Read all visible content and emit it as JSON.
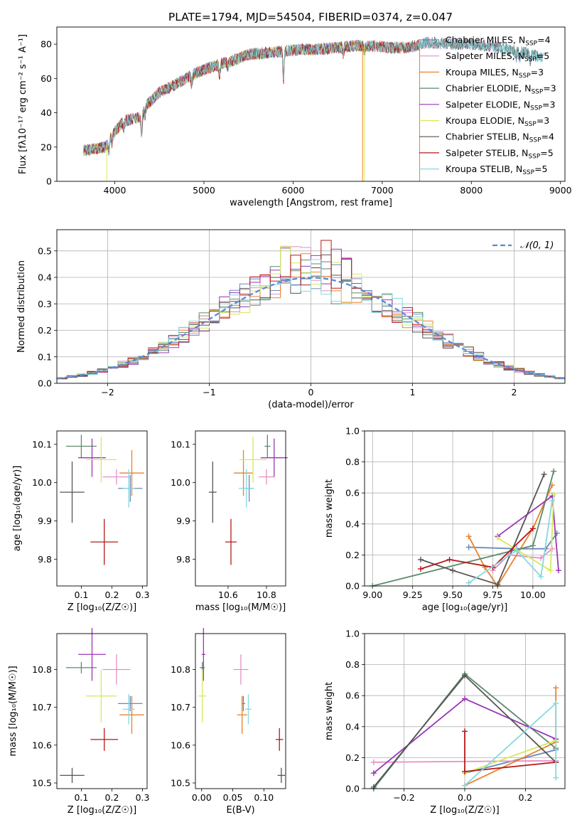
{
  "figure": {
    "title": "PLATE=1794, MJD=54504, FIBERID=0374, z=0.047"
  },
  "models": [
    {
      "name": "Chabrier MILES",
      "nssp": "4",
      "color": "#6b86b8",
      "z": 0.26,
      "z_err": 0.04,
      "age": 9.985,
      "age_err": 0.035,
      "mass": 10.71,
      "mass_err": 0.02,
      "ebv": 0.067,
      "ebv_err": 0.003
    },
    {
      "name": "Salpeter MILES",
      "nssp": "5",
      "color": "#e88ec4",
      "z": 0.215,
      "z_err": 0.045,
      "age": 10.015,
      "age_err": 0.02,
      "mass": 10.8,
      "mass_err": 0.04,
      "ebv": 0.063,
      "ebv_err": 0.012
    },
    {
      "name": "Kroupa MILES",
      "nssp": "3",
      "color": "#e8822d",
      "z": 0.265,
      "z_err": 0.04,
      "age": 10.025,
      "age_err": 0.06,
      "mass": 10.68,
      "mass_err": 0.05,
      "ebv": 0.065,
      "ebv_err": 0.008
    },
    {
      "name": "Chabrier ELODIE",
      "nssp": "3",
      "color": "#5b8b6a",
      "z": 0.1,
      "z_err": 0.05,
      "age": 10.095,
      "age_err": 0.03,
      "mass": 10.805,
      "mass_err": 0.015,
      "ebv": 0.001,
      "ebv_err": 0.004
    },
    {
      "name": "Salpeter ELODIE",
      "nssp": "3",
      "color": "#9b36b5",
      "z": 0.135,
      "z_err": 0.045,
      "age": 10.065,
      "age_err": 0.05,
      "mass": 10.84,
      "mass_err": 0.07,
      "ebv": 0.003,
      "ebv_err": 0.003
    },
    {
      "name": "Kroupa ELODIE",
      "nssp": "3",
      "color": "#d4ea5a",
      "z": 0.165,
      "z_err": 0.05,
      "age": 10.06,
      "age_err": 0.06,
      "mass": 10.73,
      "mass_err": 0.07,
      "ebv": 0.001,
      "ebv_err": 0.006
    },
    {
      "name": "Chabrier STELIB",
      "nssp": "4",
      "color": "#555555",
      "z": 0.07,
      "z_err": 0.04,
      "age": 9.975,
      "age_err": 0.08,
      "mass": 10.52,
      "mass_err": 0.02,
      "ebv": 0.128,
      "ebv_err": 0.006
    },
    {
      "name": "Salpeter STELIB",
      "nssp": "5",
      "color": "#b41a1a",
      "z": 0.175,
      "z_err": 0.045,
      "age": 9.845,
      "age_err": 0.06,
      "mass": 10.615,
      "mass_err": 0.03,
      "ebv": 0.125,
      "ebv_err": 0.006
    },
    {
      "name": "Kroupa STELIB",
      "nssp": "5",
      "color": "#86d8e0",
      "z": 0.255,
      "z_err": 0.02,
      "age": 9.985,
      "age_err": 0.05,
      "mass": 10.695,
      "mass_err": 0.04,
      "ebv": 0.075,
      "ebv_err": 0.005
    }
  ],
  "chart_data": [
    {
      "id": "spectrum",
      "type": "line",
      "xlabel": "wavelength [Angstrom, rest frame]",
      "ylabel": "Flux [fλ10⁻¹⁷ erg cm⁻² s⁻¹ A⁻¹]",
      "xlim": [
        3350,
        9050
      ],
      "ylim": [
        0,
        90
      ],
      "xticks": [
        4000,
        5000,
        6000,
        7000,
        8000,
        9000
      ],
      "yticks": [
        0,
        20,
        40,
        60,
        80
      ],
      "legend": "upper right",
      "continuum": {
        "x": [
          3650,
          3900,
          3950,
          4100,
          4300,
          4350,
          4500,
          4700,
          4900,
          5100,
          5300,
          5500,
          5700,
          5900,
          6100,
          6300,
          6500,
          6700,
          6900,
          7100,
          7300,
          7500,
          7800,
          8000,
          8200,
          8400,
          8600,
          8800
        ],
        "y": [
          18,
          20,
          26,
          35,
          38,
          44,
          52,
          57,
          63,
          67,
          70,
          74,
          75,
          76,
          77,
          77,
          78,
          79,
          79,
          78,
          78,
          81,
          80,
          80,
          79,
          77,
          75,
          72
        ]
      },
      "drops": [
        {
          "series": "Kroupa ELODIE",
          "x": 3910
        },
        {
          "series": "Kroupa ELODIE",
          "x": 6800
        },
        {
          "series": "Kroupa MILES",
          "x": 6780
        },
        {
          "series": "Kroupa MILES",
          "x": 7420
        }
      ],
      "wave_start": {
        "Chabrier MILES": 3650,
        "Kroupa ELODIE": 3650
      },
      "wave_end": {
        "Chabrier MILES": 8820,
        "Salpeter MILES": 8300,
        "Kroupa MILES": 7420,
        "Chabrier ELODIE": 8800,
        "Salpeter ELODIE": 6800,
        "Kroupa ELODIE": 6800,
        "Chabrier STELIB": 8800,
        "Salpeter STELIB": 7420,
        "Kroupa STELIB": 8800
      }
    },
    {
      "id": "residuals",
      "type": "histogram",
      "xlabel": "(data-model)/error",
      "ylabel": "Normed distribution",
      "xlim": [
        -2.5,
        2.5
      ],
      "ylim": [
        0,
        0.58
      ],
      "xticks": [
        -2,
        -1,
        0,
        1,
        2
      ],
      "yticks": [
        0.0,
        0.1,
        0.2,
        0.3,
        0.4,
        0.5
      ],
      "grid": true,
      "legend": "upper right",
      "reference": {
        "name": "𝒩(0, 1)",
        "mean": 0,
        "sigma": 1,
        "color": "#5a8ad2"
      }
    },
    {
      "id": "age-vs-z",
      "type": "scatter",
      "xlabel": "Z [log₁₀(Z/Z☉)]",
      "ylabel": "age  [log₁₀(age/yr)]",
      "xlim": [
        0.02,
        0.315
      ],
      "ylim": [
        9.73,
        10.135
      ],
      "xticks": [
        0.1,
        0.2,
        0.3
      ],
      "yticks": [
        9.8,
        9.9,
        10.0,
        10.1
      ],
      "xfield": "z",
      "yfield": "age"
    },
    {
      "id": "age-vs-mass",
      "type": "scatter",
      "xlabel": "mass [log₁₀(M/M☉)]",
      "ylabel": "",
      "xlim": [
        10.43,
        10.9
      ],
      "ylim": [
        9.73,
        10.135
      ],
      "xticks": [
        10.6,
        10.8
      ],
      "yticks": [
        9.8,
        9.9,
        10.0,
        10.1
      ],
      "xfield": "mass",
      "yfield": "age"
    },
    {
      "id": "weight-vs-age",
      "type": "line",
      "xlabel": "age  [log₁₀(age/yr)]",
      "ylabel": "mass weight",
      "xlim": [
        8.95,
        10.2
      ],
      "ylim": [
        0,
        1.0
      ],
      "xticks": [
        9.0,
        9.25,
        9.5,
        9.75,
        10.0
      ],
      "yticks": [
        0.0,
        0.2,
        0.4,
        0.6,
        0.8,
        1.0
      ],
      "grid": true,
      "series": [
        {
          "name": "Chabrier MILES",
          "x": [
            9.6,
            9.9,
            10.08,
            10.15
          ],
          "y": [
            0.25,
            0.24,
            0.24,
            0.34
          ]
        },
        {
          "name": "Salpeter MILES",
          "x": [
            9.75,
            9.85,
            10.05,
            10.12
          ],
          "y": [
            0.1,
            0.2,
            0.18,
            0.24
          ]
        },
        {
          "name": "Kroupa MILES",
          "x": [
            9.6,
            9.7,
            9.78,
            10.0,
            10.12
          ],
          "y": [
            0.32,
            0.12,
            0.0,
            0.37,
            0.65
          ]
        },
        {
          "name": "Chabrier ELODIE",
          "x": [
            9.0,
            10.0,
            10.13
          ],
          "y": [
            0.0,
            0.26,
            0.74
          ]
        },
        {
          "name": "Salpeter ELODIE",
          "x": [
            9.78,
            10.12,
            10.16
          ],
          "y": [
            0.32,
            0.58,
            0.1
          ]
        },
        {
          "name": "Kroupa ELODIE",
          "x": [
            9.78,
            10.11,
            10.13
          ],
          "y": [
            0.31,
            0.1,
            0.59
          ]
        },
        {
          "name": "Chabrier STELIB",
          "x": [
            9.3,
            9.5,
            9.78,
            10.07
          ],
          "y": [
            0.17,
            0.1,
            0.01,
            0.72
          ]
        },
        {
          "name": "Salpeter STELIB",
          "x": [
            9.3,
            9.48,
            9.75,
            10.0
          ],
          "y": [
            0.11,
            0.17,
            0.12,
            0.37
          ]
        },
        {
          "name": "Kroupa STELIB",
          "x": [
            9.6,
            9.9,
            10.05,
            10.12
          ],
          "y": [
            0.02,
            0.23,
            0.06,
            0.55
          ]
        }
      ]
    },
    {
      "id": "mass-vs-z",
      "type": "scatter",
      "xlabel": "Z [log₁₀(Z/Z☉)]",
      "ylabel": "mass [log₁₀(M/M☉)]",
      "xlim": [
        0.02,
        0.315
      ],
      "ylim": [
        10.485,
        10.895
      ],
      "xticks": [
        0.1,
        0.2,
        0.3
      ],
      "yticks": [
        10.5,
        10.6,
        10.7,
        10.8
      ],
      "xfield": "z",
      "yfield": "mass"
    },
    {
      "id": "mass-vs-ebv",
      "type": "scatter",
      "xlabel": "E(B-V)",
      "ylabel": "",
      "xlim": [
        -0.01,
        0.135
      ],
      "ylim": [
        10.485,
        10.895
      ],
      "xticks": [
        0.0,
        0.05,
        0.1
      ],
      "yticks": [
        10.5,
        10.6,
        10.7,
        10.8
      ],
      "xfield": "ebv",
      "yfield": "mass"
    },
    {
      "id": "weight-vs-z",
      "type": "line",
      "xlabel": "Z [log₁₀(Z/Z☉)]",
      "ylabel": "mass weight",
      "xlim": [
        -0.33,
        0.33
      ],
      "ylim": [
        0,
        1.0
      ],
      "xticks": [
        -0.2,
        0.0,
        0.2
      ],
      "yticks": [
        0.0,
        0.2,
        0.4,
        0.6,
        0.8,
        1.0
      ],
      "grid": true,
      "series": [
        {
          "name": "Chabrier MILES",
          "x": [
            0.0,
            0.3
          ],
          "y": [
            0.1,
            0.25
          ]
        },
        {
          "name": "Salpeter MILES",
          "x": [
            -0.3,
            0.3
          ],
          "y": [
            0.17,
            0.18
          ]
        },
        {
          "name": "Kroupa MILES",
          "x": [
            0.0,
            0.3,
            0.3
          ],
          "y": [
            0.02,
            0.3,
            0.65
          ]
        },
        {
          "name": "Chabrier ELODIE",
          "x": [
            -0.3,
            0.0,
            0.3
          ],
          "y": [
            0.0,
            0.74,
            0.26
          ]
        },
        {
          "name": "Salpeter ELODIE",
          "x": [
            -0.3,
            0.0,
            0.3
          ],
          "y": [
            0.1,
            0.58,
            0.32
          ]
        },
        {
          "name": "Kroupa ELODIE",
          "x": [
            0.0,
            0.3
          ],
          "y": [
            0.1,
            0.31
          ]
        },
        {
          "name": "Chabrier STELIB",
          "x": [
            -0.3,
            0.0,
            0.3
          ],
          "y": [
            0.01,
            0.73,
            0.17
          ]
        },
        {
          "name": "Salpeter STELIB",
          "x": [
            0.0,
            0.0,
            0.3
          ],
          "y": [
            0.37,
            0.11,
            0.17
          ]
        },
        {
          "name": "Kroupa STELIB",
          "x": [
            0.0,
            0.3,
            0.3
          ],
          "y": [
            0.02,
            0.55,
            0.07
          ]
        }
      ]
    }
  ]
}
